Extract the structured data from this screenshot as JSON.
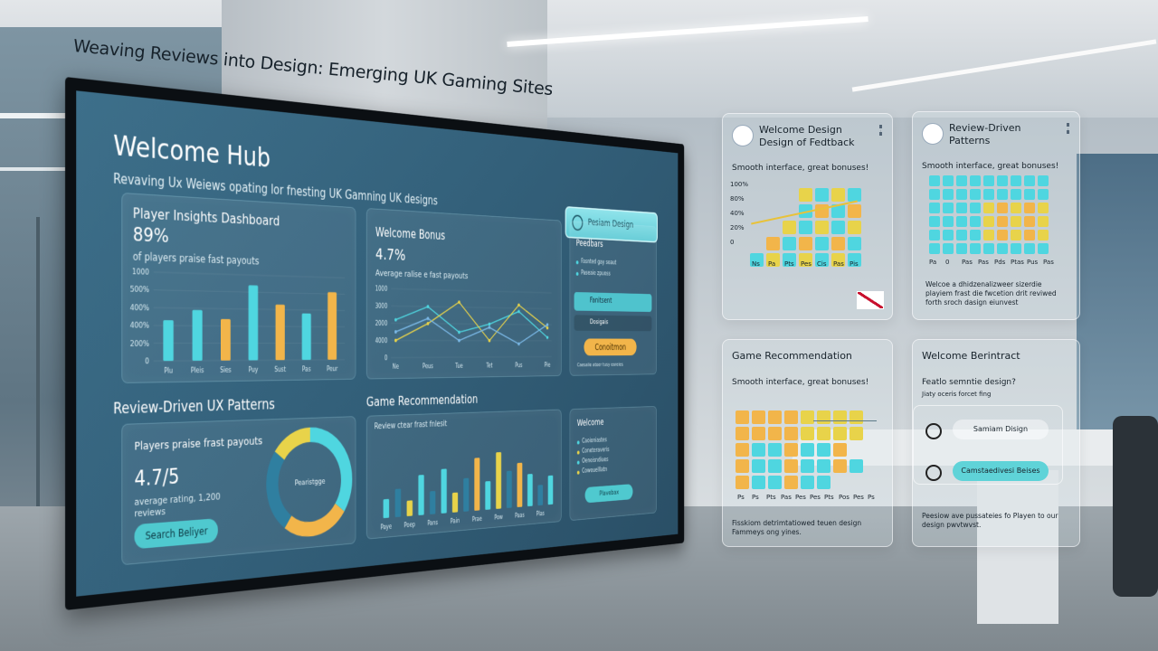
{
  "title": "Weaving Reviews into Design: Emerging UK Gaming Sites",
  "screen": {
    "heading": "Welcome Hub",
    "subheading": "Revaving Ux Weiews opating lor fnesting UK Gamning UK designs",
    "badge": "Pesiam Design",
    "insights": {
      "title": "Player Insights Dashboard",
      "stat": "89%",
      "caption": "of players praise fast payouts",
      "chart": {
        "type": "bar",
        "categories": [
          "Plu",
          "Pleis",
          "Sies",
          "Puy",
          "Sust",
          "Pas",
          "Peur"
        ],
        "values": [
          2.3,
          2.9,
          2.4,
          4.4,
          3.3,
          2.8,
          4.1
        ],
        "colors": [
          "#4fd6e0",
          "#4fd6e0",
          "#f2b54a",
          "#4fd6e0",
          "#f2b54a",
          "#4fd6e0",
          "#f2b54a"
        ],
        "ylim": [
          0,
          5
        ],
        "yticks": [
          {
            "value": 0,
            "label": "0"
          },
          {
            "value": 1,
            "label": "200%"
          },
          {
            "value": 2,
            "label": "400%"
          },
          {
            "value": 3,
            "label": "400%"
          },
          {
            "value": 4,
            "label": "500%"
          },
          {
            "value": 5,
            "label": "1000"
          }
        ]
      }
    },
    "bonus": {
      "title": "Welcome Bonus",
      "stat": "4.7%",
      "caption": "Average ralise e fast payouts",
      "chart": {
        "type": "line",
        "categories": [
          "Ne",
          "Peus",
          "Tue",
          "Tet",
          "Pus",
          "Pie"
        ],
        "ylim": [
          0,
          4
        ],
        "yticks": [
          {
            "value": 0,
            "label": "0"
          },
          {
            "value": 1,
            "label": "4000"
          },
          {
            "value": 2,
            "label": "2000"
          },
          {
            "value": 3,
            "label": "3000"
          },
          {
            "value": 4,
            "label": "1000"
          }
        ],
        "series": [
          {
            "color": "#4fd6e0",
            "values": [
              2.2,
              3.0,
              1.5,
              2.0,
              2.8,
              1.2
            ]
          },
          {
            "color": "#e8d34a",
            "values": [
              1.0,
              2.0,
              3.3,
              1.0,
              3.2,
              1.8
            ]
          },
          {
            "color": "#7ab8e6",
            "values": [
              1.5,
              2.3,
              1.0,
              1.8,
              0.8,
              2.0
            ]
          }
        ]
      }
    },
    "feedback": {
      "title": "Peedbars",
      "items": [
        "Fasnted gay seaut",
        "Paseaie zpuoss"
      ],
      "buttons": [
        "Fanitsent",
        "Dosigais"
      ],
      "action": "Conoitmon",
      "footer": "Caesalie atoer tusy eareies"
    },
    "patterns": {
      "heading": "Review-Driven UX Patterns",
      "caption": "Players praise frast payouts",
      "rating": "4.7/5",
      "note": "average rating, 1,200 reviews",
      "button": "Search Beliyer",
      "donut": {
        "type": "pie",
        "label": "Pearistgge",
        "values": [
          35,
          25,
          25,
          15
        ],
        "colors": [
          "#4fd6e0",
          "#f2b54a",
          "#2f7fa0",
          "#e8d34a"
        ]
      }
    },
    "recommendation": {
      "heading": "Game Recommendation",
      "caption": "Review ctear frast fnlesit",
      "chart": {
        "type": "bar",
        "categories": [
          "Paye",
          null,
          "Poep",
          null,
          "Pans",
          null,
          "Pain",
          null,
          "Prae",
          null,
          "Pow",
          null,
          "Paas",
          null,
          "Plas",
          null
        ],
        "values": [
          1.2,
          1.8,
          1.0,
          2.6,
          1.5,
          2.9,
          1.3,
          2.2,
          3.5,
          1.9,
          3.8,
          2.5,
          3.0,
          2.2,
          1.4,
          2.0
        ],
        "colors": [
          "#4fd6e0",
          "#2f7fa0",
          "#e8d34a",
          "#4fd6e0",
          "#2f7fa0",
          "#4fd6e0",
          "#e8d34a",
          "#2f7fa0",
          "#f2b54a",
          "#4fd6e0",
          "#e8d34a",
          "#2f7fa0",
          "#f2b54a",
          "#4fd6e0",
          "#2f7fa0",
          "#4fd6e0"
        ],
        "ylim": [
          0,
          5
        ]
      }
    },
    "welcome": {
      "title": "Welcome",
      "items": [
        "Caoioniastes",
        "Coneteraveris",
        "Oeneisndiues",
        "Coweuelllatn"
      ],
      "button": "Plavebax"
    }
  },
  "panels": [
    {
      "title": "Welcome Design Design of Fedtback",
      "subtitle": "Smooth interface, great bonuses!",
      "yticks": [
        "100%",
        "80%",
        "40%",
        "20%",
        "0"
      ],
      "xlabels": [
        "Ns",
        "Pa",
        "Pts",
        "Pes",
        "Cis",
        "Pas",
        "Pis"
      ]
    },
    {
      "title": "Review-Driven Patterns",
      "subtitle": "Smooth interface, great bonuses!",
      "xlabels": [
        "Pa",
        "0",
        "Pas",
        "Pas",
        "Pds",
        "Ptas",
        "Pus",
        "Pas"
      ],
      "footer": "Welcoe a dhidzenalizweer sizerdie playiem frast die fwcetion drit reviwed forth sroch dasign eiunvest"
    },
    {
      "title": "Game Recommendation",
      "subtitle": "Smooth interface, great bonuses!",
      "xlabels": [
        "Ps",
        "Ps",
        "Pts",
        "Pas",
        "Pes",
        "Pes",
        "Pts",
        "Pos",
        "Pes",
        "Ps"
      ],
      "footer": "Fisskiom detrimtatiowed teuen design Fammeys ong yines."
    },
    {
      "title": "Welcome Berintract",
      "subtitle": "Featlo semntie design?",
      "note": "Jiaty oceris forcet fing",
      "buttons": [
        "Samiam Disign",
        "Camstaedivesi Beises"
      ],
      "footer": "Peesiow ave pussateies fo Playen to our design pwvtwvst."
    }
  ]
}
